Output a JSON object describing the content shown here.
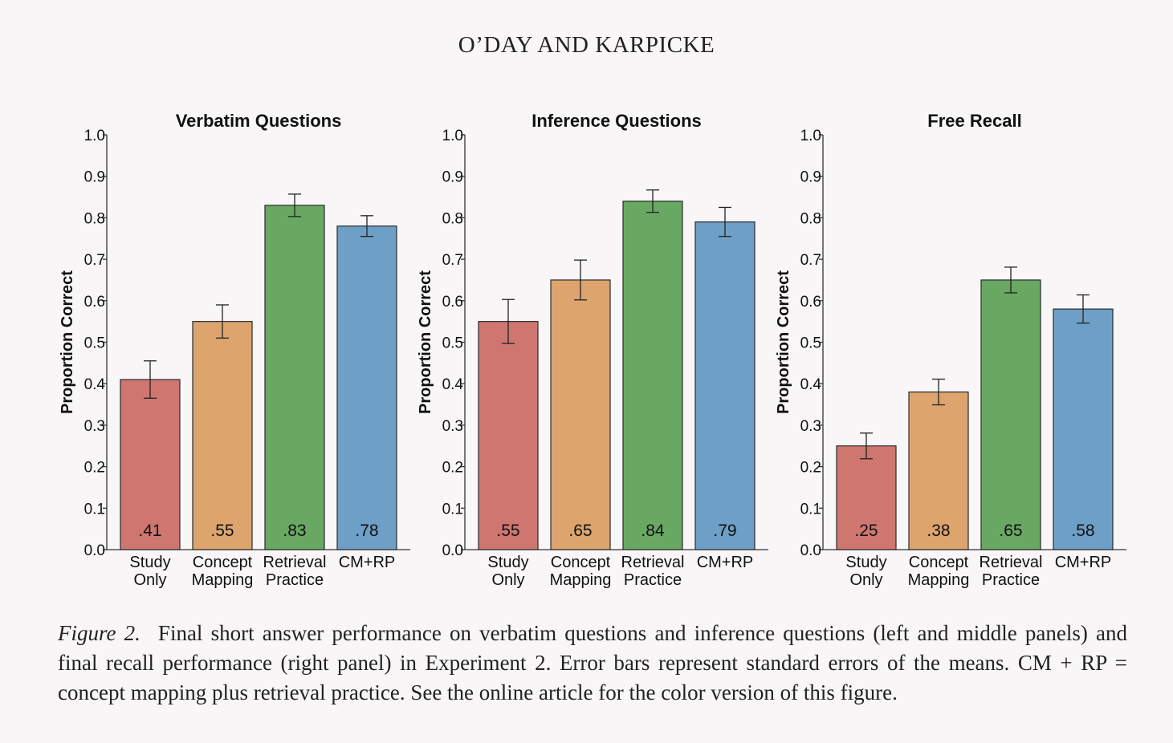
{
  "header": "O’DAY AND KARPICKE",
  "chart_data": [
    {
      "type": "bar",
      "title": "Verbatim Questions",
      "ylabel": "Proportion Correct",
      "ylim": [
        0,
        1.0
      ],
      "yticks": [
        "0.0",
        "0.1",
        "0.2",
        "0.3",
        "0.4",
        "0.5",
        "0.6",
        "0.7",
        "0.8",
        "0.9",
        "1.0"
      ],
      "categories": [
        [
          "Study",
          "Only"
        ],
        [
          "Concept",
          "Mapping"
        ],
        [
          "Retrieval",
          "Practice"
        ],
        [
          "CM+RP"
        ]
      ],
      "values": [
        0.41,
        0.55,
        0.83,
        0.78
      ],
      "labels": [
        ".41",
        ".55",
        ".83",
        ".78"
      ],
      "error": [
        0.045,
        0.04,
        0.027,
        0.025
      ],
      "colors": [
        "#cf7671",
        "#de a46e",
        "#68a863",
        "#6e9fc6"
      ]
    },
    {
      "type": "bar",
      "title": "Inference Questions",
      "ylabel": "Proportion Correct",
      "ylim": [
        0,
        1.0
      ],
      "yticks": [
        "0.0",
        "0.1",
        "0.2",
        "0.3",
        "0.4",
        "0.5",
        "0.6",
        "0.7",
        "0.8",
        "0.9",
        "1.0"
      ],
      "categories": [
        [
          "Study",
          "Only"
        ],
        [
          "Concept",
          "Mapping"
        ],
        [
          "Retrieval",
          "Practice"
        ],
        [
          "CM+RP"
        ]
      ],
      "values": [
        0.55,
        0.65,
        0.84,
        0.79
      ],
      "labels": [
        ".55",
        ".65",
        ".84",
        ".79"
      ],
      "error": [
        0.053,
        0.048,
        0.027,
        0.035
      ],
      "colors": [
        "#cf7671",
        "#dea46e",
        "#68a863",
        "#6e9fc6"
      ]
    },
    {
      "type": "bar",
      "title": "Free Recall",
      "ylabel": "Proportion Correct",
      "ylim": [
        0,
        1.0
      ],
      "yticks": [
        "0.0",
        "0.1",
        "0.2",
        "0.3",
        "0.4",
        "0.5",
        "0.6",
        "0.7",
        "0.8",
        "0.9",
        "1.0"
      ],
      "categories": [
        [
          "Study",
          "Only"
        ],
        [
          "Concept",
          "Mapping"
        ],
        [
          "Retrieval",
          "Practice"
        ],
        [
          "CM+RP"
        ]
      ],
      "values": [
        0.25,
        0.38,
        0.65,
        0.58
      ],
      "labels": [
        ".25",
        ".38",
        ".65",
        ".58"
      ],
      "error": [
        0.031,
        0.031,
        0.031,
        0.034
      ],
      "colors": [
        "#cf7671",
        "#dea46e",
        "#68a863",
        "#6e9fc6"
      ]
    }
  ],
  "caption": {
    "figure_label": "Figure 2.",
    "text": "Final short answer performance on verbatim questions and inference questions (left and middle panels) and final recall performance (right panel) in Experiment 2. Error bars represent standard errors of the means. CM + RP = concept mapping plus retrieval practice. See the online article for the color version of this figure."
  }
}
